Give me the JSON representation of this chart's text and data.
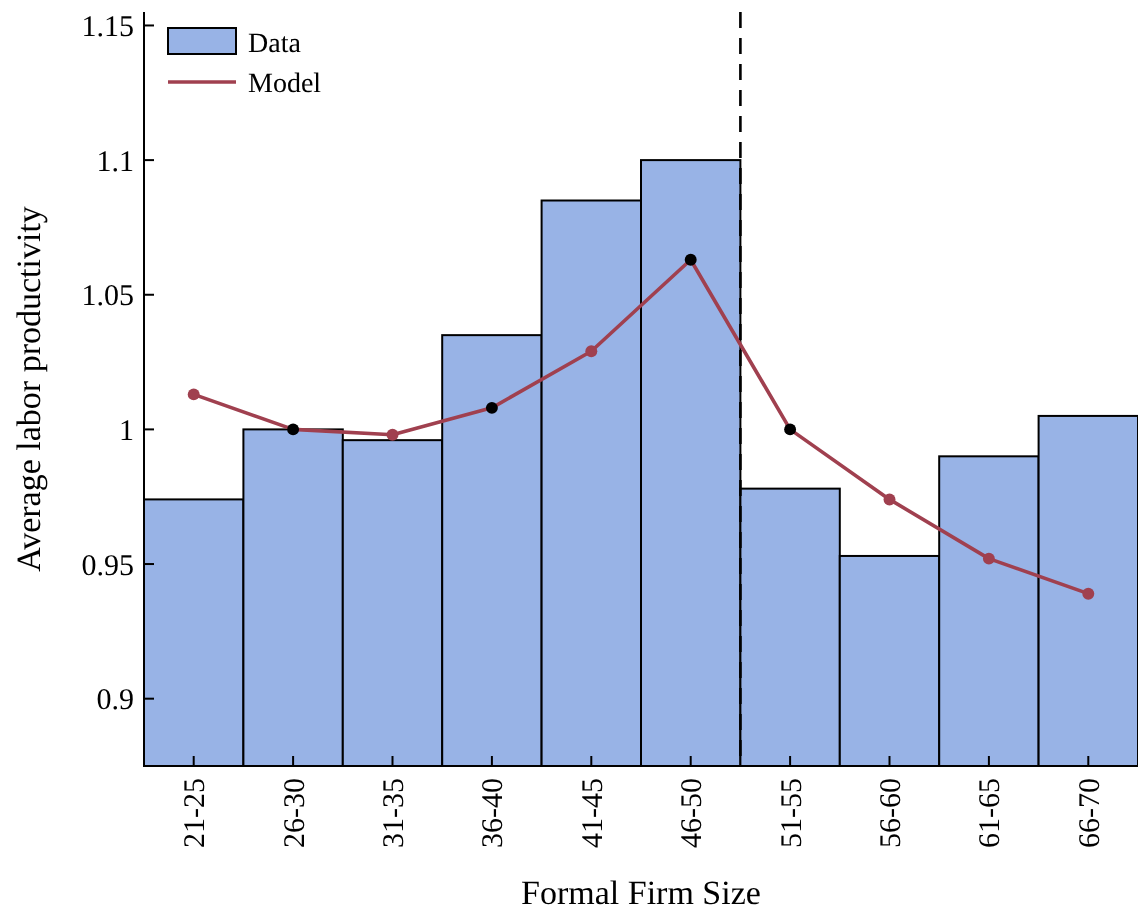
{
  "chart_data": {
    "type": "bar",
    "xlabel": "Formal Firm Size",
    "ylabel": "Average labor productivity",
    "categories": [
      "21-25",
      "26-30",
      "31-35",
      "36-40",
      "41-45",
      "46-50",
      "51-55",
      "56-60",
      "61-65",
      "66-70"
    ],
    "ylim": [
      0.875,
      1.155
    ],
    "yticks": [
      0.9,
      0.95,
      1,
      1.05,
      1.1,
      1.15
    ],
    "series": [
      {
        "name": "Data",
        "color": "#98b3e6",
        "values": [
          0.974,
          1.0,
          0.996,
          1.035,
          1.085,
          1.1,
          0.978,
          0.953,
          0.99,
          1.005
        ]
      },
      {
        "name": "Model",
        "type": "line",
        "color": "#a0404f",
        "colors": [
          "#a0404f",
          "#000000",
          "#a0404f",
          "#000000",
          "#a0404f",
          "#000000",
          "#000000",
          "#a0404f",
          "#a0404f",
          "#a0404f"
        ],
        "values": [
          1.013,
          1.0,
          0.998,
          1.008,
          1.029,
          1.063,
          1.0,
          0.974,
          0.952,
          0.939
        ]
      }
    ],
    "marker": "circle",
    "legend": "top left",
    "grid": false
  }
}
